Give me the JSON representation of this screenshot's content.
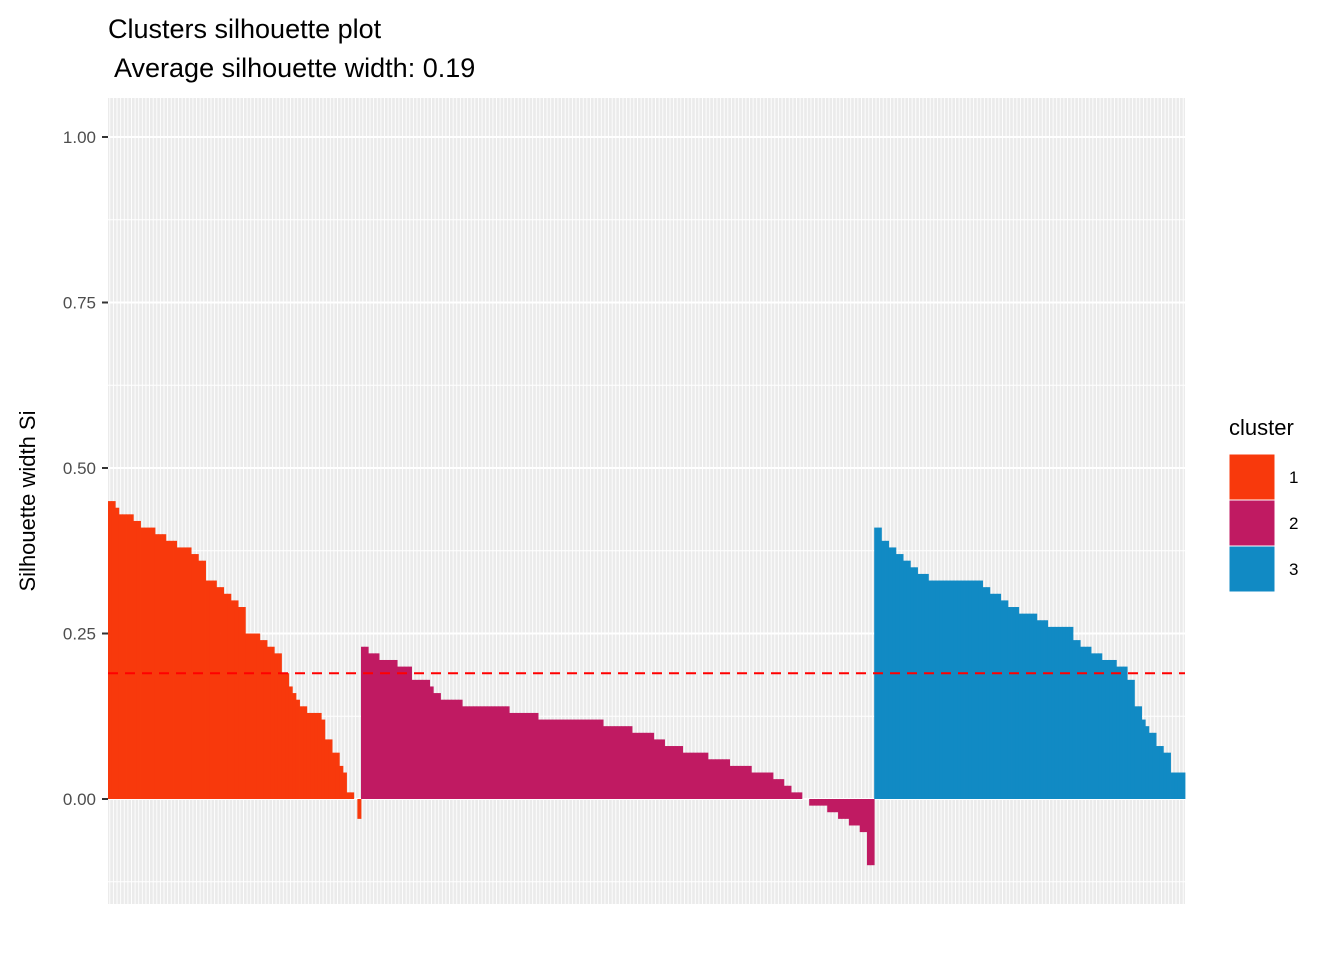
{
  "chart_data": {
    "type": "bar",
    "title": "Clusters silhouette plot",
    "subtitle": " Average silhouette width: 0.19",
    "xlabel": "",
    "ylabel": "Silhouette width Si",
    "ylim": [
      -0.135,
      1.06
    ],
    "yticks": [
      {
        "value": 0.0,
        "label": "0.00"
      },
      {
        "value": 0.25,
        "label": "0.25"
      },
      {
        "value": 0.5,
        "label": "0.50"
      },
      {
        "value": 0.75,
        "label": "0.75"
      },
      {
        "value": 1.0,
        "label": "1.00"
      }
    ],
    "average_silhouette": 0.19,
    "grid": true,
    "legend": {
      "title": "cluster",
      "placement": "right",
      "entries": [
        {
          "label": "1",
          "color": "#f8390c"
        },
        {
          "label": "2",
          "color": "#c01a62"
        },
        {
          "label": "3",
          "color": "#118ac4"
        }
      ]
    },
    "series": [
      {
        "cluster": "1",
        "color": "#f8390c",
        "values": [
          0.45,
          0.45,
          0.44,
          0.43,
          0.43,
          0.43,
          0.43,
          0.42,
          0.42,
          0.41,
          0.41,
          0.41,
          0.41,
          0.4,
          0.4,
          0.4,
          0.39,
          0.39,
          0.39,
          0.38,
          0.38,
          0.38,
          0.38,
          0.37,
          0.37,
          0.36,
          0.36,
          0.33,
          0.33,
          0.33,
          0.32,
          0.32,
          0.31,
          0.31,
          0.3,
          0.3,
          0.29,
          0.29,
          0.25,
          0.25,
          0.25,
          0.25,
          0.24,
          0.24,
          0.23,
          0.23,
          0.22,
          0.22,
          0.19,
          0.19,
          0.17,
          0.16,
          0.15,
          0.14,
          0.14,
          0.13,
          0.13,
          0.13,
          0.13,
          0.12,
          0.09,
          0.09,
          0.07,
          0.07,
          0.05,
          0.04,
          0.01,
          0.01,
          0.0,
          -0.03
        ]
      },
      {
        "cluster": "2",
        "color": "#c01a62",
        "values": [
          0.23,
          0.23,
          0.22,
          0.22,
          0.22,
          0.21,
          0.21,
          0.21,
          0.21,
          0.21,
          0.2,
          0.2,
          0.2,
          0.2,
          0.18,
          0.18,
          0.18,
          0.18,
          0.18,
          0.17,
          0.16,
          0.16,
          0.15,
          0.15,
          0.15,
          0.15,
          0.15,
          0.15,
          0.14,
          0.14,
          0.14,
          0.14,
          0.14,
          0.14,
          0.14,
          0.14,
          0.14,
          0.14,
          0.14,
          0.14,
          0.14,
          0.13,
          0.13,
          0.13,
          0.13,
          0.13,
          0.13,
          0.13,
          0.13,
          0.12,
          0.12,
          0.12,
          0.12,
          0.12,
          0.12,
          0.12,
          0.12,
          0.12,
          0.12,
          0.12,
          0.12,
          0.12,
          0.12,
          0.12,
          0.12,
          0.12,
          0.12,
          0.11,
          0.11,
          0.11,
          0.11,
          0.11,
          0.11,
          0.11,
          0.11,
          0.1,
          0.1,
          0.1,
          0.1,
          0.1,
          0.1,
          0.09,
          0.09,
          0.09,
          0.08,
          0.08,
          0.08,
          0.08,
          0.08,
          0.07,
          0.07,
          0.07,
          0.07,
          0.07,
          0.07,
          0.07,
          0.06,
          0.06,
          0.06,
          0.06,
          0.06,
          0.06,
          0.05,
          0.05,
          0.05,
          0.05,
          0.05,
          0.05,
          0.04,
          0.04,
          0.04,
          0.04,
          0.04,
          0.04,
          0.03,
          0.03,
          0.03,
          0.02,
          0.02,
          0.01,
          0.01,
          0.01,
          0.0,
          0.0,
          -0.01,
          -0.01,
          -0.01,
          -0.01,
          -0.01,
          -0.02,
          -0.02,
          -0.02,
          -0.03,
          -0.03,
          -0.03,
          -0.04,
          -0.04,
          -0.04,
          -0.05,
          -0.05,
          -0.1,
          -0.1
        ]
      },
      {
        "cluster": "3",
        "color": "#118ac4",
        "values": [
          0.41,
          0.41,
          0.39,
          0.39,
          0.38,
          0.38,
          0.37,
          0.37,
          0.36,
          0.36,
          0.35,
          0.35,
          0.34,
          0.34,
          0.34,
          0.33,
          0.33,
          0.33,
          0.33,
          0.33,
          0.33,
          0.33,
          0.33,
          0.33,
          0.33,
          0.33,
          0.33,
          0.33,
          0.33,
          0.33,
          0.32,
          0.32,
          0.31,
          0.31,
          0.31,
          0.3,
          0.3,
          0.29,
          0.29,
          0.29,
          0.28,
          0.28,
          0.28,
          0.28,
          0.28,
          0.27,
          0.27,
          0.27,
          0.26,
          0.26,
          0.26,
          0.26,
          0.26,
          0.26,
          0.26,
          0.24,
          0.24,
          0.23,
          0.23,
          0.23,
          0.22,
          0.22,
          0.22,
          0.21,
          0.21,
          0.21,
          0.21,
          0.2,
          0.2,
          0.2,
          0.18,
          0.18,
          0.14,
          0.14,
          0.12,
          0.11,
          0.1,
          0.1,
          0.08,
          0.08,
          0.07,
          0.07,
          0.04,
          0.04,
          0.04,
          0.04
        ]
      }
    ]
  }
}
